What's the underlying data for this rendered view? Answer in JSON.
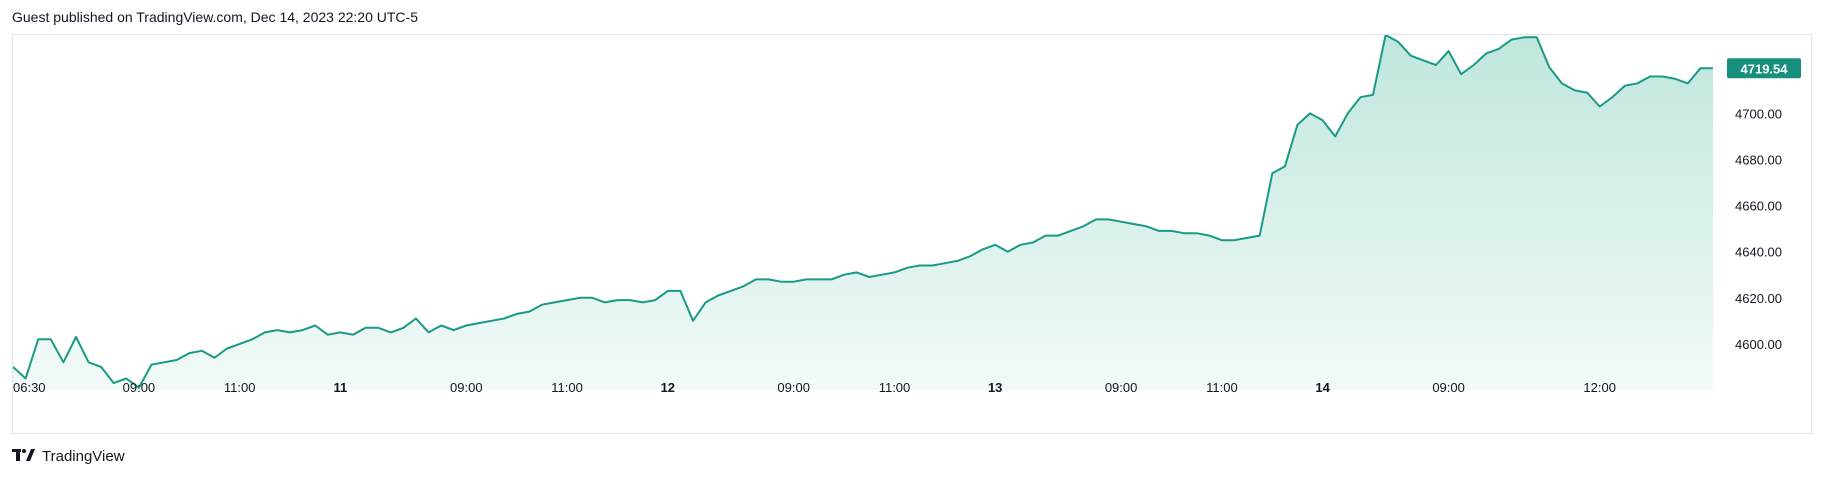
{
  "header": {
    "text": "Guest published on TradingView.com, Dec 14, 2023 22:20 UTC-5"
  },
  "footer": {
    "brand": "TradingView"
  },
  "colors": {
    "line": "#1a9985",
    "fill_top": "#bfe6dd",
    "fill_bottom": "#f2faf8",
    "badge": "#16907d",
    "axis_text": "#131722",
    "border": "#e0e3eb"
  },
  "chart_data": {
    "type": "area",
    "title": "",
    "xlabel": "",
    "ylabel": "",
    "ylim": [
      4580,
      4734
    ],
    "y_ticks": [
      "4600.00",
      "4620.00",
      "4640.00",
      "4660.00",
      "4680.00",
      "4700.00"
    ],
    "x_ticks": [
      {
        "label": "06:30",
        "bold": false,
        "index": 0
      },
      {
        "label": "09:00",
        "bold": false,
        "index": 10
      },
      {
        "label": "11:00",
        "bold": false,
        "index": 18
      },
      {
        "label": "11",
        "bold": true,
        "index": 26
      },
      {
        "label": "09:00",
        "bold": false,
        "index": 36
      },
      {
        "label": "11:00",
        "bold": false,
        "index": 44
      },
      {
        "label": "12",
        "bold": true,
        "index": 52
      },
      {
        "label": "09:00",
        "bold": false,
        "index": 62
      },
      {
        "label": "11:00",
        "bold": false,
        "index": 70
      },
      {
        "label": "13",
        "bold": true,
        "index": 78
      },
      {
        "label": "09:00",
        "bold": false,
        "index": 88
      },
      {
        "label": "11:00",
        "bold": false,
        "index": 96
      },
      {
        "label": "14",
        "bold": true,
        "index": 104
      },
      {
        "label": "09:00",
        "bold": false,
        "index": 114
      },
      {
        "label": "12:00",
        "bold": false,
        "index": 126
      }
    ],
    "last_value_label": "4719.54",
    "series": [
      {
        "values": [
          4590,
          4585,
          4602,
          4602,
          4592,
          4603,
          4592,
          4590,
          4583,
          4585,
          4581,
          4591,
          4592,
          4593,
          4596,
          4597,
          4594,
          4598,
          4600,
          4602,
          4605,
          4606,
          4605,
          4606,
          4608,
          4604,
          4605,
          4604,
          4607,
          4607,
          4605,
          4607,
          4611,
          4605,
          4608,
          4606,
          4608,
          4609,
          4610,
          4611,
          4613,
          4614,
          4617,
          4618,
          4619,
          4620,
          4620,
          4618,
          4619,
          4619,
          4618,
          4619,
          4623,
          4623,
          4610,
          4618,
          4621,
          4623,
          4625,
          4628,
          4628,
          4627,
          4627,
          4628,
          4628,
          4628,
          4630,
          4631,
          4629,
          4630,
          4631,
          4633,
          4634,
          4634,
          4635,
          4636,
          4638,
          4641,
          4643,
          4640,
          4643,
          4644,
          4647,
          4647,
          4649,
          4651,
          4654,
          4654,
          4653,
          4652,
          4651,
          4649,
          4649,
          4648,
          4648,
          4647,
          4645,
          4645,
          4646,
          4647,
          4674,
          4677,
          4695,
          4700,
          4697,
          4690,
          4700,
          4707,
          4708,
          4734,
          4731,
          4725,
          4723,
          4721,
          4727,
          4717,
          4721,
          4726,
          4728,
          4732,
          4733,
          4733,
          4720,
          4713,
          4710,
          4709,
          4703,
          4707,
          4712,
          4713,
          4716,
          4716,
          4715,
          4713,
          4719.54,
          4719.54
        ]
      }
    ]
  }
}
